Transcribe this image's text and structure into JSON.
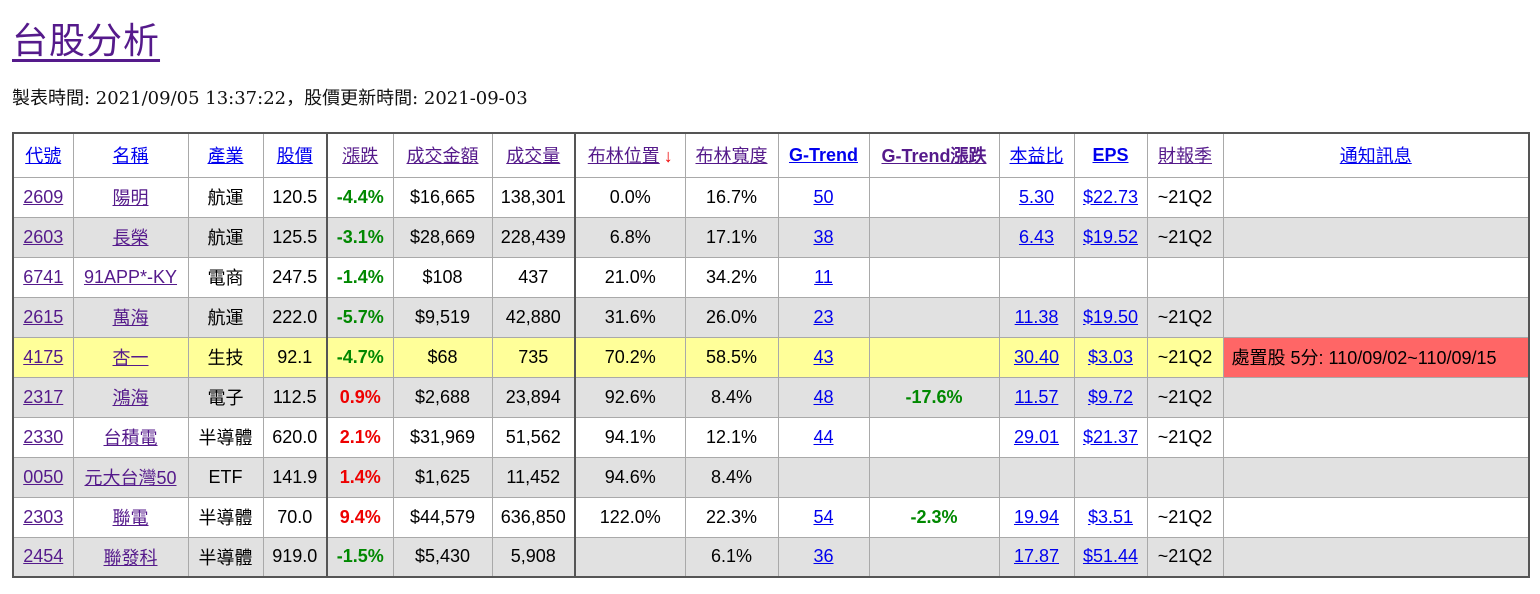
{
  "page": {
    "title": "台股分析",
    "meta": "製表時間: 2021/09/05 13:37:22，股價更新時間: 2021-09-03"
  },
  "table": {
    "headers": {
      "code": "代號",
      "name": "名稱",
      "industry": "產業",
      "price": "股價",
      "change": "漲跌",
      "amount": "成交金額",
      "volume": "成交量",
      "boll_pos": "布林位置",
      "boll_pos_arrow": "↓",
      "boll_width": "布林寬度",
      "gtrend": "G-Trend",
      "gtrend_change": "G-Trend漲跌",
      "pe": "本益比",
      "eps": "EPS",
      "season": "財報季",
      "notice": "通知訊息"
    },
    "rows": [
      {
        "code": "2609",
        "name": "陽明",
        "industry": "航運",
        "price": "120.5",
        "change": "-4.4%",
        "amount": "$16,665",
        "volume": "138,301",
        "boll_pos": "0.0%",
        "boll_width": "16.7%",
        "gtrend": "50",
        "gtrend_change": "",
        "pe": "5.30",
        "eps": "$22.73",
        "season": "~21Q2",
        "notice": ""
      },
      {
        "code": "2603",
        "name": "長榮",
        "industry": "航運",
        "price": "125.5",
        "change": "-3.1%",
        "amount": "$28,669",
        "volume": "228,439",
        "boll_pos": "6.8%",
        "boll_width": "17.1%",
        "gtrend": "38",
        "gtrend_change": "",
        "pe": "6.43",
        "eps": "$19.52",
        "season": "~21Q2",
        "notice": ""
      },
      {
        "code": "6741",
        "name": "91APP*-KY",
        "industry": "電商",
        "price": "247.5",
        "change": "-1.4%",
        "amount": "$108",
        "volume": "437",
        "boll_pos": "21.0%",
        "boll_width": "34.2%",
        "gtrend": "11",
        "gtrend_change": "",
        "pe": "",
        "eps": "",
        "season": "",
        "notice": ""
      },
      {
        "code": "2615",
        "name": "萬海",
        "industry": "航運",
        "price": "222.0",
        "change": "-5.7%",
        "amount": "$9,519",
        "volume": "42,880",
        "boll_pos": "31.6%",
        "boll_width": "26.0%",
        "gtrend": "23",
        "gtrend_change": "",
        "pe": "11.38",
        "eps": "$19.50",
        "season": "~21Q2",
        "notice": ""
      },
      {
        "code": "4175",
        "name": "杏一",
        "industry": "生技",
        "price": "92.1",
        "change": "-4.7%",
        "amount": "$68",
        "volume": "735",
        "boll_pos": "70.2%",
        "boll_width": "58.5%",
        "gtrend": "43",
        "gtrend_change": "",
        "pe": "30.40",
        "eps": "$3.03",
        "season": "~21Q2",
        "notice": "處置股 5分: 110/09/02~110/09/15"
      },
      {
        "code": "2317",
        "name": "鴻海",
        "industry": "電子",
        "price": "112.5",
        "change": "0.9%",
        "amount": "$2,688",
        "volume": "23,894",
        "boll_pos": "92.6%",
        "boll_width": "8.4%",
        "gtrend": "48",
        "gtrend_change": "-17.6%",
        "pe": "11.57",
        "eps": "$9.72",
        "season": "~21Q2",
        "notice": ""
      },
      {
        "code": "2330",
        "name": "台積電",
        "industry": "半導體",
        "price": "620.0",
        "change": "2.1%",
        "amount": "$31,969",
        "volume": "51,562",
        "boll_pos": "94.1%",
        "boll_width": "12.1%",
        "gtrend": "44",
        "gtrend_change": "",
        "pe": "29.01",
        "eps": "$21.37",
        "season": "~21Q2",
        "notice": ""
      },
      {
        "code": "0050",
        "name": "元大台灣50",
        "industry": "ETF",
        "price": "141.9",
        "change": "1.4%",
        "amount": "$1,625",
        "volume": "11,452",
        "boll_pos": "94.6%",
        "boll_width": "8.4%",
        "gtrend": "",
        "gtrend_change": "",
        "pe": "",
        "eps": "",
        "season": "",
        "notice": ""
      },
      {
        "code": "2303",
        "name": "聯電",
        "industry": "半導體",
        "price": "70.0",
        "change": "9.4%",
        "amount": "$44,579",
        "volume": "636,850",
        "boll_pos": "122.0%",
        "boll_width": "22.3%",
        "gtrend": "54",
        "gtrend_change": "-2.3%",
        "pe": "19.94",
        "eps": "$3.51",
        "season": "~21Q2",
        "notice": ""
      },
      {
        "code": "2454",
        "name": "聯發科",
        "industry": "半導體",
        "price": "919.0",
        "change": "-1.5%",
        "amount": "$5,430",
        "volume": "5,908",
        "boll_pos": "",
        "boll_width": "6.1%",
        "gtrend": "36",
        "gtrend_change": "",
        "pe": "17.87",
        "eps": "$51.44",
        "season": "~21Q2",
        "notice": ""
      }
    ]
  },
  "colors": {
    "link_visited": "#551a8b",
    "link": "#0000ee",
    "negative": "#008800",
    "positive": "#ee0000",
    "row_alt": "#e1e1e1",
    "row_highlight": "#ffff99",
    "alert": "#ff6666"
  }
}
